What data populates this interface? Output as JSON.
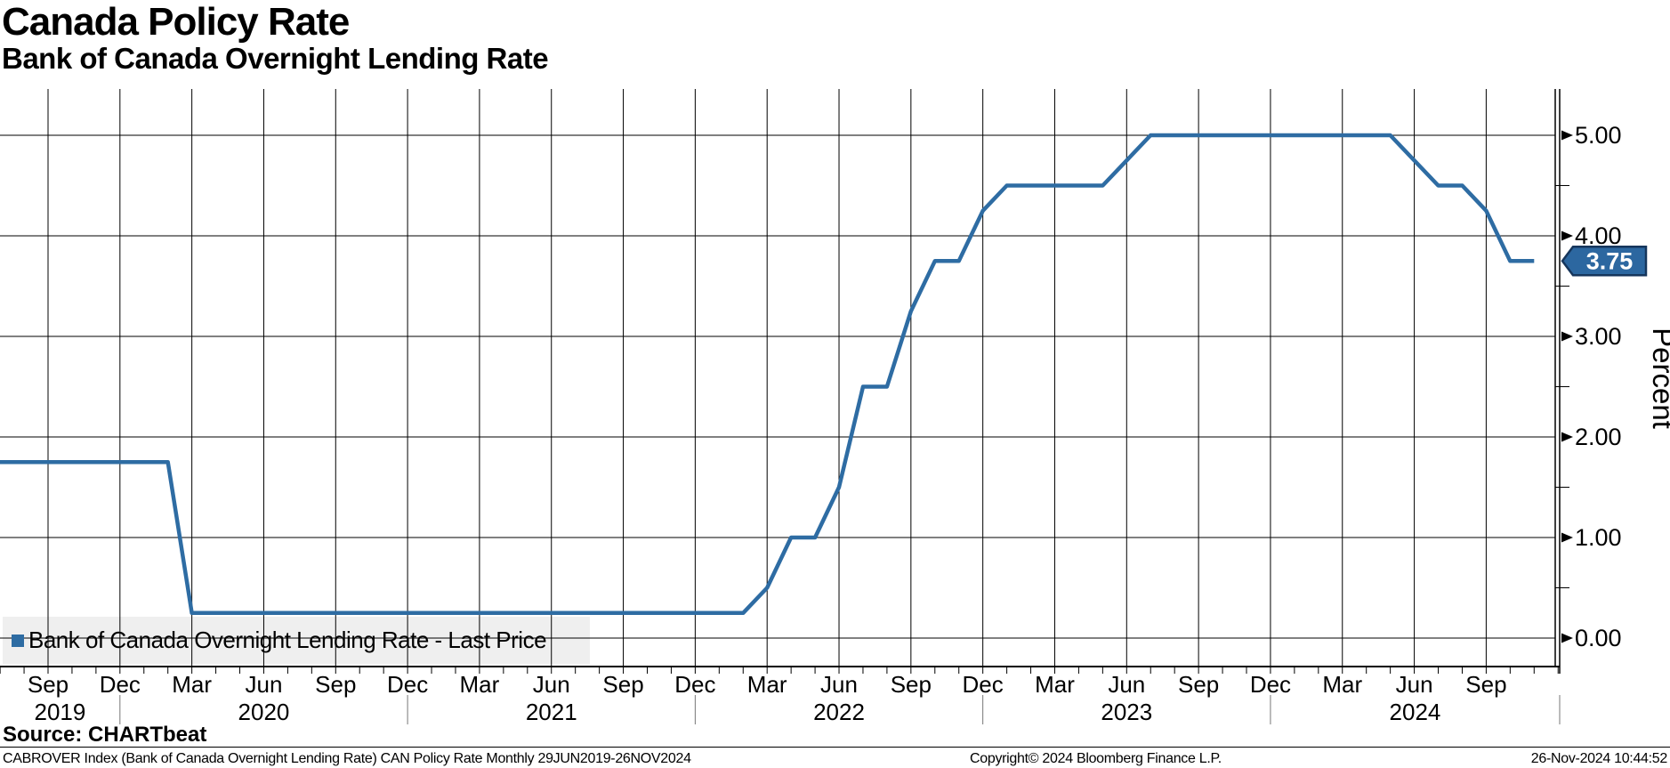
{
  "header": {
    "title": "Canada Policy Rate",
    "subtitle": "Bank of Canada Overnight Lending Rate"
  },
  "legend": {
    "label": "Bank of Canada Overnight Lending Rate - Last Price"
  },
  "footer": {
    "source": "Source: CHARTbeat",
    "left": "CABROVER Index (Bank of Canada Overnight Lending Rate) CAN Policy Rate  Monthly 29JUN2019-26NOV2024",
    "copyright": "Copyright© 2024 Bloomberg Finance L.P.",
    "timestamp": "26-Nov-2024 10:44:52"
  },
  "colors": {
    "line": "#2e6ca3",
    "badge_fill": "#2c67a0",
    "badge_border": "#16365c",
    "badge_text": "#ffffff",
    "legend_bg": "#efefef",
    "grid": "#000000",
    "axis": "#000000",
    "year_separator": "#777777"
  },
  "chart_data": {
    "type": "line",
    "title": "Canada Policy Rate",
    "subtitle": "Bank of Canada Overnight Lending Rate",
    "ylabel": "Percent",
    "xlabel": "",
    "ylim": [
      -0.28,
      5.5
    ],
    "grid": true,
    "legend_position": "bottom-left",
    "last_price": "3.75",
    "yticks": [
      {
        "value": 0,
        "label": "0.00"
      },
      {
        "value": 1,
        "label": "1.00"
      },
      {
        "value": 2,
        "label": "2.00"
      },
      {
        "value": 3,
        "label": "3.00"
      },
      {
        "value": 4,
        "label": "4.00"
      },
      {
        "value": 5,
        "label": "5.00"
      }
    ],
    "yticks_minor": [
      0.5,
      1.5,
      2.5,
      3.5,
      4.5
    ],
    "xticks": [
      {
        "month": "2019-09",
        "label": "Sep"
      },
      {
        "month": "2019-12",
        "label": "Dec"
      },
      {
        "month": "2020-03",
        "label": "Mar"
      },
      {
        "month": "2020-06",
        "label": "Jun"
      },
      {
        "month": "2020-09",
        "label": "Sep"
      },
      {
        "month": "2020-12",
        "label": "Dec"
      },
      {
        "month": "2021-03",
        "label": "Mar"
      },
      {
        "month": "2021-06",
        "label": "Jun"
      },
      {
        "month": "2021-09",
        "label": "Sep"
      },
      {
        "month": "2021-12",
        "label": "Dec"
      },
      {
        "month": "2022-03",
        "label": "Mar"
      },
      {
        "month": "2022-06",
        "label": "Jun"
      },
      {
        "month": "2022-09",
        "label": "Sep"
      },
      {
        "month": "2022-12",
        "label": "Dec"
      },
      {
        "month": "2023-03",
        "label": "Mar"
      },
      {
        "month": "2023-06",
        "label": "Jun"
      },
      {
        "month": "2023-09",
        "label": "Sep"
      },
      {
        "month": "2023-12",
        "label": "Dec"
      },
      {
        "month": "2024-03",
        "label": "Mar"
      },
      {
        "month": "2024-06",
        "label": "Jun"
      },
      {
        "month": "2024-09",
        "label": "Sep"
      }
    ],
    "year_labels": [
      "2019",
      "2020",
      "2021",
      "2022",
      "2023",
      "2024"
    ],
    "year_separators": [
      "2019-12",
      "2020-12",
      "2021-12",
      "2022-12",
      "2023-12"
    ],
    "series": [
      {
        "name": "Bank of Canada Overnight Lending Rate - Last Price",
        "color": "#2e6ca3",
        "points": [
          [
            "2019-06",
            1.75
          ],
          [
            "2019-07",
            1.75
          ],
          [
            "2019-08",
            1.75
          ],
          [
            "2019-09",
            1.75
          ],
          [
            "2019-10",
            1.75
          ],
          [
            "2019-11",
            1.75
          ],
          [
            "2019-12",
            1.75
          ],
          [
            "2020-01",
            1.75
          ],
          [
            "2020-02",
            1.75
          ],
          [
            "2020-03",
            0.25
          ],
          [
            "2020-04",
            0.25
          ],
          [
            "2020-05",
            0.25
          ],
          [
            "2020-06",
            0.25
          ],
          [
            "2020-07",
            0.25
          ],
          [
            "2020-08",
            0.25
          ],
          [
            "2020-09",
            0.25
          ],
          [
            "2020-10",
            0.25
          ],
          [
            "2020-11",
            0.25
          ],
          [
            "2020-12",
            0.25
          ],
          [
            "2021-01",
            0.25
          ],
          [
            "2021-02",
            0.25
          ],
          [
            "2021-03",
            0.25
          ],
          [
            "2021-04",
            0.25
          ],
          [
            "2021-05",
            0.25
          ],
          [
            "2021-06",
            0.25
          ],
          [
            "2021-07",
            0.25
          ],
          [
            "2021-08",
            0.25
          ],
          [
            "2021-09",
            0.25
          ],
          [
            "2021-10",
            0.25
          ],
          [
            "2021-11",
            0.25
          ],
          [
            "2021-12",
            0.25
          ],
          [
            "2022-01",
            0.25
          ],
          [
            "2022-02",
            0.25
          ],
          [
            "2022-03",
            0.5
          ],
          [
            "2022-04",
            1.0
          ],
          [
            "2022-05",
            1.0
          ],
          [
            "2022-06",
            1.5
          ],
          [
            "2022-07",
            2.5
          ],
          [
            "2022-08",
            2.5
          ],
          [
            "2022-09",
            3.25
          ],
          [
            "2022-10",
            3.75
          ],
          [
            "2022-11",
            3.75
          ],
          [
            "2022-12",
            4.25
          ],
          [
            "2023-01",
            4.5
          ],
          [
            "2023-02",
            4.5
          ],
          [
            "2023-03",
            4.5
          ],
          [
            "2023-04",
            4.5
          ],
          [
            "2023-05",
            4.5
          ],
          [
            "2023-06",
            4.75
          ],
          [
            "2023-07",
            5.0
          ],
          [
            "2023-08",
            5.0
          ],
          [
            "2023-09",
            5.0
          ],
          [
            "2023-10",
            5.0
          ],
          [
            "2023-11",
            5.0
          ],
          [
            "2023-12",
            5.0
          ],
          [
            "2024-01",
            5.0
          ],
          [
            "2024-02",
            5.0
          ],
          [
            "2024-03",
            5.0
          ],
          [
            "2024-04",
            5.0
          ],
          [
            "2024-05",
            5.0
          ],
          [
            "2024-06",
            4.75
          ],
          [
            "2024-07",
            4.5
          ],
          [
            "2024-08",
            4.5
          ],
          [
            "2024-09",
            4.25
          ],
          [
            "2024-10",
            3.75
          ],
          [
            "2024-11",
            3.75
          ]
        ]
      }
    ]
  }
}
